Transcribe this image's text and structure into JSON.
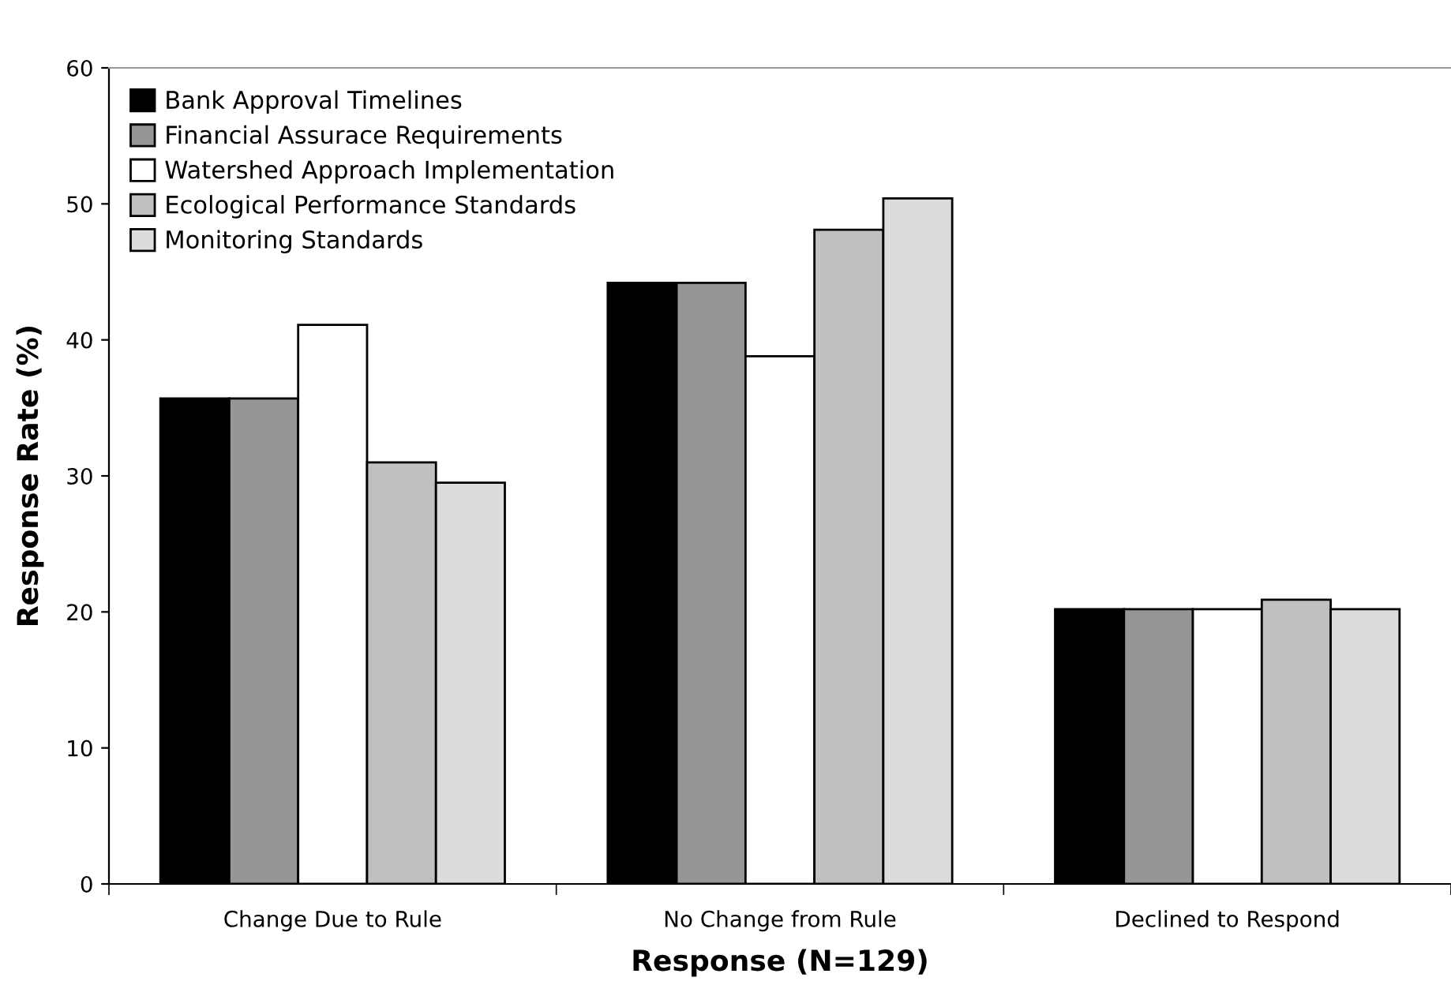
{
  "chart_data": {
    "type": "bar",
    "xlabel": "Response (N=129)",
    "ylabel": "Response Rate (%)",
    "categories": [
      "Change Due to Rule",
      "No Change from Rule",
      "Declined to Respond"
    ],
    "series": [
      {
        "name": "Bank Approval Timelines",
        "color": "#000000",
        "values": [
          35.7,
          44.2,
          20.2
        ]
      },
      {
        "name": "Financial Assurace Requirements",
        "color": "#969696",
        "values": [
          35.7,
          44.2,
          20.2
        ]
      },
      {
        "name": "Watershed Approach Implementation",
        "color": "#ffffff",
        "values": [
          41.1,
          38.8,
          20.2
        ]
      },
      {
        "name": "Ecological Performance Standards",
        "color": "#c0c0c0",
        "values": [
          31.0,
          48.1,
          20.9
        ]
      },
      {
        "name": "Monitoring Standards",
        "color": "#dcdcdc",
        "values": [
          29.5,
          50.4,
          20.2
        ]
      }
    ],
    "ylim": [
      0,
      60
    ],
    "yticks": [
      0,
      10,
      20,
      30,
      40,
      50,
      60
    ],
    "grid": false,
    "legend": "top left"
  }
}
